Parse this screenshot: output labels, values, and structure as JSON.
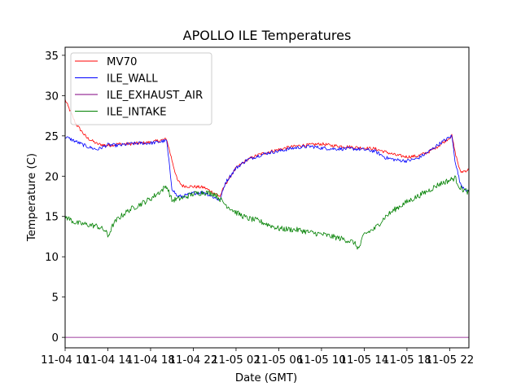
{
  "chart_data": {
    "type": "line",
    "title": "APOLLO ILE Temperatures",
    "xlabel": "Date (GMT)",
    "ylabel": "Temperature (C)",
    "x_unit": "hours since 11-04 10:00 GMT",
    "xlim": [
      0,
      37.8
    ],
    "ylim": [
      -1.3,
      36
    ],
    "xticks": [
      {
        "value": 0,
        "label": "11-04 10"
      },
      {
        "value": 4,
        "label": "11-04 14"
      },
      {
        "value": 8,
        "label": "11-04 18"
      },
      {
        "value": 12,
        "label": "11-04 22"
      },
      {
        "value": 16,
        "label": "11-05 02"
      },
      {
        "value": 20,
        "label": "11-05 06"
      },
      {
        "value": 24,
        "label": "11-05 10"
      },
      {
        "value": 28,
        "label": "11-05 14"
      },
      {
        "value": 32,
        "label": "11-05 18"
      },
      {
        "value": 36,
        "label": "11-05 22"
      }
    ],
    "yticks": [
      0,
      5,
      10,
      15,
      20,
      25,
      30,
      35
    ],
    "legend_position": "top-left",
    "series": [
      {
        "name": "MV70",
        "color": "#ff0000",
        "x": [
          0,
          1,
          2,
          3,
          4,
          5,
          6,
          7,
          8,
          9.5,
          10,
          10.5,
          11,
          12,
          13,
          14.5,
          15,
          16,
          17,
          18,
          19,
          20,
          21,
          22,
          23,
          24,
          25,
          26,
          27,
          28,
          29,
          30,
          31,
          32,
          33,
          34,
          35,
          36.2,
          36.5,
          37,
          37.8
        ],
        "y": [
          29.5,
          26.5,
          24.8,
          24.0,
          23.8,
          24.0,
          24.0,
          24.1,
          24.2,
          24.6,
          22.0,
          19.5,
          18.8,
          18.7,
          18.6,
          17.5,
          19.0,
          21.0,
          22.0,
          22.6,
          23.0,
          23.3,
          23.6,
          23.8,
          23.9,
          24.0,
          23.8,
          23.7,
          23.6,
          23.5,
          23.4,
          23.0,
          22.6,
          22.4,
          22.5,
          23.0,
          23.8,
          25.0,
          23.0,
          20.5,
          20.8
        ]
      },
      {
        "name": "ILE_WALL",
        "color": "#0000ff",
        "x": [
          0,
          1,
          2,
          3,
          4,
          5,
          6,
          7,
          8,
          9.5,
          10,
          10.5,
          11,
          12,
          13,
          14.5,
          15,
          16,
          17,
          18,
          19,
          20,
          21,
          22,
          23,
          24,
          25,
          26,
          27,
          28,
          29,
          30,
          31,
          32,
          33,
          34,
          35,
          36.2,
          36.5,
          37,
          37.8
        ],
        "y": [
          24.9,
          24.3,
          23.7,
          23.3,
          23.9,
          23.8,
          24.0,
          24.1,
          24.1,
          24.4,
          18.5,
          17.5,
          17.5,
          17.9,
          18.0,
          17.0,
          19.2,
          21.0,
          22.0,
          22.5,
          22.9,
          23.1,
          23.4,
          23.6,
          23.7,
          23.5,
          23.4,
          23.4,
          23.4,
          23.3,
          23.1,
          22.3,
          22.0,
          21.9,
          22.2,
          23.0,
          24.0,
          25.0,
          22.0,
          19.0,
          18.0
        ]
      },
      {
        "name": "ILE_EXHAUST_AIR",
        "color": "#800080",
        "x": [
          0,
          37.8
        ],
        "y": [
          0,
          0
        ]
      },
      {
        "name": "ILE_INTAKE",
        "color": "#008000",
        "x": [
          0,
          1,
          2,
          3,
          3.8,
          4,
          4.5,
          5,
          6,
          7,
          8,
          9,
          9.5,
          10,
          11,
          12,
          13,
          14,
          15,
          16,
          17,
          18,
          19,
          20,
          21,
          22,
          23,
          24,
          25,
          26,
          27,
          27.5,
          28,
          29,
          30,
          31,
          32,
          33,
          34,
          35,
          36,
          36.5,
          37,
          37.8
        ],
        "y": [
          15.0,
          14.2,
          14.0,
          13.8,
          13.2,
          12.5,
          14.0,
          14.8,
          15.8,
          16.5,
          17.2,
          18.2,
          18.8,
          17.0,
          17.3,
          17.8,
          18.0,
          17.8,
          16.5,
          15.5,
          14.8,
          14.5,
          14.0,
          13.5,
          13.4,
          13.3,
          13.0,
          12.8,
          12.5,
          12.2,
          11.8,
          11.0,
          12.8,
          13.5,
          15.0,
          16.0,
          16.8,
          17.5,
          18.2,
          19.0,
          19.5,
          19.8,
          18.5,
          18.0
        ]
      }
    ]
  }
}
